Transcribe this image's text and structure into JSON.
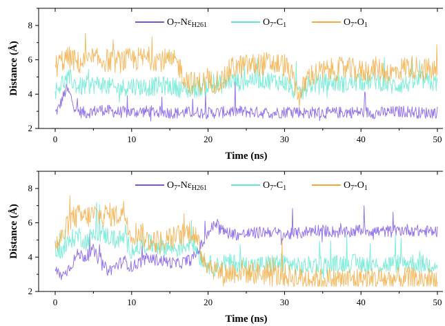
{
  "chart_data": [
    {
      "type": "line",
      "xlabel": "Time (ns)",
      "ylabel": "Distance (Å)",
      "xlim": [
        0,
        50
      ],
      "ylim": [
        2,
        9
      ],
      "xticks": [
        "0",
        "10",
        "20",
        "30",
        "40",
        "50"
      ],
      "yticks": [
        "2",
        "4",
        "6",
        "8"
      ],
      "grid": false,
      "legend_position": "top",
      "series": [
        {
          "name": "O7-NεH261",
          "legend": {
            "main": "O",
            "s1": "7",
            "mid": "-Nε",
            "s2": "H261"
          },
          "color": "#7b52e6",
          "x": [
            0,
            0.5,
            1,
            1.5,
            2,
            2.5,
            3,
            4,
            5,
            6,
            8,
            10,
            12,
            14,
            16,
            18,
            20,
            22,
            24,
            26,
            28,
            30,
            31,
            32,
            33,
            34,
            36,
            38,
            40,
            42,
            44,
            46,
            48,
            50
          ],
          "y": [
            2.9,
            3.2,
            3.8,
            4.3,
            3.9,
            3.3,
            3.0,
            2.9,
            3.0,
            3.1,
            2.95,
            2.95,
            3.0,
            2.95,
            2.9,
            2.95,
            2.9,
            2.95,
            3.0,
            2.95,
            2.9,
            2.95,
            3.1,
            2.95,
            2.9,
            2.95,
            2.9,
            2.95,
            2.95,
            2.9,
            2.95,
            3.0,
            2.9,
            2.95
          ]
        },
        {
          "name": "O7-C1",
          "legend": {
            "main": "O",
            "s1": "7",
            "mid": "-C",
            "s2": "1"
          },
          "color": "#5fe8d0",
          "x": [
            0,
            1,
            2,
            3,
            4,
            6,
            8,
            10,
            12,
            14,
            16,
            17,
            18,
            20,
            22,
            23,
            24,
            26,
            28,
            30,
            31,
            32,
            33,
            34,
            36,
            38,
            40,
            42,
            44,
            46,
            48,
            50
          ],
          "y": [
            4.2,
            4.7,
            4.9,
            4.4,
            4.5,
            4.6,
            4.3,
            4.5,
            4.4,
            4.5,
            4.4,
            4.2,
            4.3,
            4.5,
            4.6,
            4.8,
            4.7,
            4.9,
            4.8,
            4.7,
            4.3,
            3.9,
            4.5,
            4.6,
            4.7,
            4.6,
            4.7,
            4.8,
            4.5,
            4.6,
            4.8,
            4.6
          ]
        },
        {
          "name": "O7-O1",
          "legend": {
            "main": "O",
            "s1": "7",
            "mid": "-O",
            "s2": "1"
          },
          "color": "#f2aa3e",
          "x": [
            0,
            1,
            2,
            3,
            4,
            6,
            8,
            10,
            12,
            14,
            16,
            17,
            18,
            20,
            22,
            23,
            24,
            26,
            28,
            30,
            31,
            32,
            33,
            34,
            36,
            38,
            40,
            42,
            44,
            46,
            48,
            50
          ],
          "y": [
            5.6,
            6.0,
            6.1,
            5.8,
            5.9,
            6.0,
            5.9,
            6.0,
            6.1,
            6.0,
            5.8,
            4.9,
            4.6,
            4.7,
            4.8,
            5.5,
            5.6,
            5.7,
            5.8,
            5.7,
            5.0,
            3.8,
            5.0,
            5.2,
            5.4,
            5.5,
            5.3,
            5.5,
            5.2,
            5.6,
            5.5,
            5.3
          ]
        }
      ]
    },
    {
      "type": "line",
      "xlabel": "Time (ns)",
      "ylabel": "Distance (Å)",
      "xlim": [
        0,
        50
      ],
      "ylim": [
        2,
        9
      ],
      "xticks": [
        "0",
        "10",
        "20",
        "30",
        "40",
        "50"
      ],
      "yticks": [
        "2",
        "4",
        "6",
        "8"
      ],
      "grid": false,
      "legend_position": "top",
      "series": [
        {
          "name": "O7-NεH261",
          "legend": {
            "main": "O",
            "s1": "7",
            "mid": "-Nε",
            "s2": "H261"
          },
          "color": "#7b52e6",
          "x": [
            0,
            1,
            2,
            3,
            4,
            5,
            6,
            7,
            8,
            9,
            10,
            11,
            12,
            14,
            16,
            18,
            19,
            20,
            21,
            22,
            24,
            26,
            28,
            30,
            32,
            34,
            36,
            38,
            40,
            42,
            44,
            46,
            48,
            50
          ],
          "y": [
            3.2,
            2.9,
            3.5,
            4.2,
            4.0,
            4.4,
            3.6,
            3.2,
            3.5,
            3.8,
            3.4,
            3.7,
            3.9,
            3.8,
            3.6,
            3.9,
            4.6,
            5.4,
            6.0,
            5.5,
            5.3,
            5.4,
            5.5,
            5.3,
            5.4,
            5.6,
            5.5,
            5.4,
            5.6,
            5.5,
            5.5,
            5.6,
            5.5,
            5.5
          ]
        },
        {
          "name": "O7-C1",
          "legend": {
            "main": "O",
            "s1": "7",
            "mid": "-C",
            "s2": "1"
          },
          "color": "#5fe8d0",
          "x": [
            0,
            1,
            2,
            3,
            4,
            5,
            6,
            7,
            8,
            9,
            10,
            11,
            12,
            14,
            16,
            18,
            19,
            20,
            21,
            22,
            24,
            26,
            28,
            30,
            32,
            34,
            36,
            38,
            40,
            42,
            44,
            46,
            48,
            50
          ],
          "y": [
            4.6,
            4.3,
            5.0,
            5.3,
            4.9,
            5.3,
            5.4,
            5.2,
            5.0,
            5.1,
            4.4,
            4.6,
            4.8,
            4.6,
            4.5,
            4.9,
            4.0,
            3.6,
            3.4,
            3.7,
            3.6,
            3.5,
            3.6,
            3.7,
            3.4,
            3.6,
            3.5,
            3.7,
            3.6,
            3.5,
            3.6,
            3.7,
            3.6,
            3.6
          ]
        },
        {
          "name": "O7-O1",
          "legend": {
            "main": "O",
            "s1": "7",
            "mid": "-O",
            "s2": "1"
          },
          "color": "#f2aa3e",
          "x": [
            0,
            1,
            2,
            3,
            4,
            5,
            6,
            7,
            8,
            9,
            10,
            11,
            12,
            14,
            16,
            18,
            19,
            20,
            21,
            22,
            24,
            26,
            28,
            30,
            32,
            34,
            36,
            38,
            40,
            42,
            44,
            46,
            48,
            50
          ],
          "y": [
            4.6,
            5.2,
            6.2,
            6.4,
            6.3,
            6.5,
            6.4,
            6.5,
            6.4,
            6.7,
            5.3,
            5.5,
            5.0,
            4.9,
            5.2,
            5.6,
            4.3,
            3.6,
            3.3,
            3.0,
            3.2,
            3.1,
            3.0,
            2.9,
            2.8,
            2.7,
            2.7,
            2.7,
            2.75,
            2.7,
            2.7,
            2.75,
            2.7,
            2.7
          ]
        }
      ]
    }
  ]
}
